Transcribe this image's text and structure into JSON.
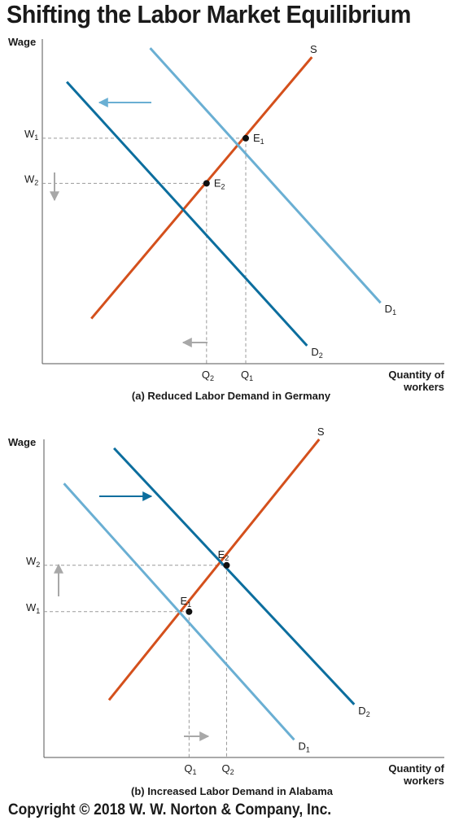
{
  "title": "Shifting the Labor Market Equilibrium",
  "copyright": "Copyright © 2018 W. W. Norton & Company, Inc.",
  "colors": {
    "supply": "#D4501C",
    "demand_initial": "#6AAFD3",
    "demand_new": "#0C6E9E",
    "guide": "#9A9A9A",
    "shift_arrow_gray": "#A8A8A8"
  },
  "chart_data": [
    {
      "type": "line",
      "caption": "(a) Reduced Labor Demand in Germany",
      "ylabel": "Wage",
      "xlabel": [
        "Quantity of",
        "workers"
      ],
      "y_ticks": [
        {
          "base": "W",
          "sub": "1"
        },
        {
          "base": "W",
          "sub": "2"
        }
      ],
      "x_ticks": [
        {
          "base": "Q",
          "sub": "2"
        },
        {
          "base": "Q",
          "sub": "1"
        }
      ],
      "series": [
        {
          "name": "S",
          "role": "supply",
          "points": [
            [
              1.0,
              1.0
            ],
            [
              5.5,
              6.8
            ]
          ]
        },
        {
          "name": "D",
          "sub": "1",
          "role": "demand_initial",
          "points": [
            [
              2.2,
              7.0
            ],
            [
              6.9,
              1.35
            ]
          ]
        },
        {
          "name": "D",
          "sub": "2",
          "role": "demand_new",
          "points": [
            [
              0.5,
              6.25
            ],
            [
              5.4,
              0.4
            ]
          ]
        }
      ],
      "equilibria": [
        {
          "name": "E",
          "sub": "1",
          "x": 4.15,
          "y": 5.0
        },
        {
          "name": "E",
          "sub": "2",
          "x": 3.35,
          "y": 4.0
        }
      ],
      "shift": "left",
      "xlim": [
        0,
        8.2
      ],
      "ylim": [
        0,
        7.2
      ]
    },
    {
      "type": "line",
      "caption": "(b) Increased Labor Demand in Alabama",
      "ylabel": "Wage",
      "xlabel": [
        "Quantity of",
        "workers"
      ],
      "y_ticks": [
        {
          "base": "W",
          "sub": "2"
        },
        {
          "base": "W",
          "sub": "1"
        }
      ],
      "x_ticks": [
        {
          "base": "Q",
          "sub": "1"
        },
        {
          "base": "Q",
          "sub": "2"
        }
      ],
      "series": [
        {
          "name": "S",
          "role": "supply",
          "points": [
            [
              1.3,
              1.3
            ],
            [
              5.5,
              7.2
            ]
          ]
        },
        {
          "name": "D",
          "sub": "1",
          "role": "demand_initial",
          "points": [
            [
              0.4,
              6.2
            ],
            [
              5.0,
              0.4
            ]
          ]
        },
        {
          "name": "D",
          "sub": "2",
          "role": "demand_new",
          "points": [
            [
              1.4,
              7.0
            ],
            [
              6.2,
              1.2
            ]
          ]
        }
      ],
      "equilibria": [
        {
          "name": "E",
          "sub": "1",
          "x": 2.9,
          "y": 3.3
        },
        {
          "name": "E",
          "sub": "2",
          "x": 3.65,
          "y": 4.35
        }
      ],
      "shift": "right",
      "xlim": [
        0,
        8.0
      ],
      "ylim": [
        0,
        7.2
      ]
    }
  ]
}
